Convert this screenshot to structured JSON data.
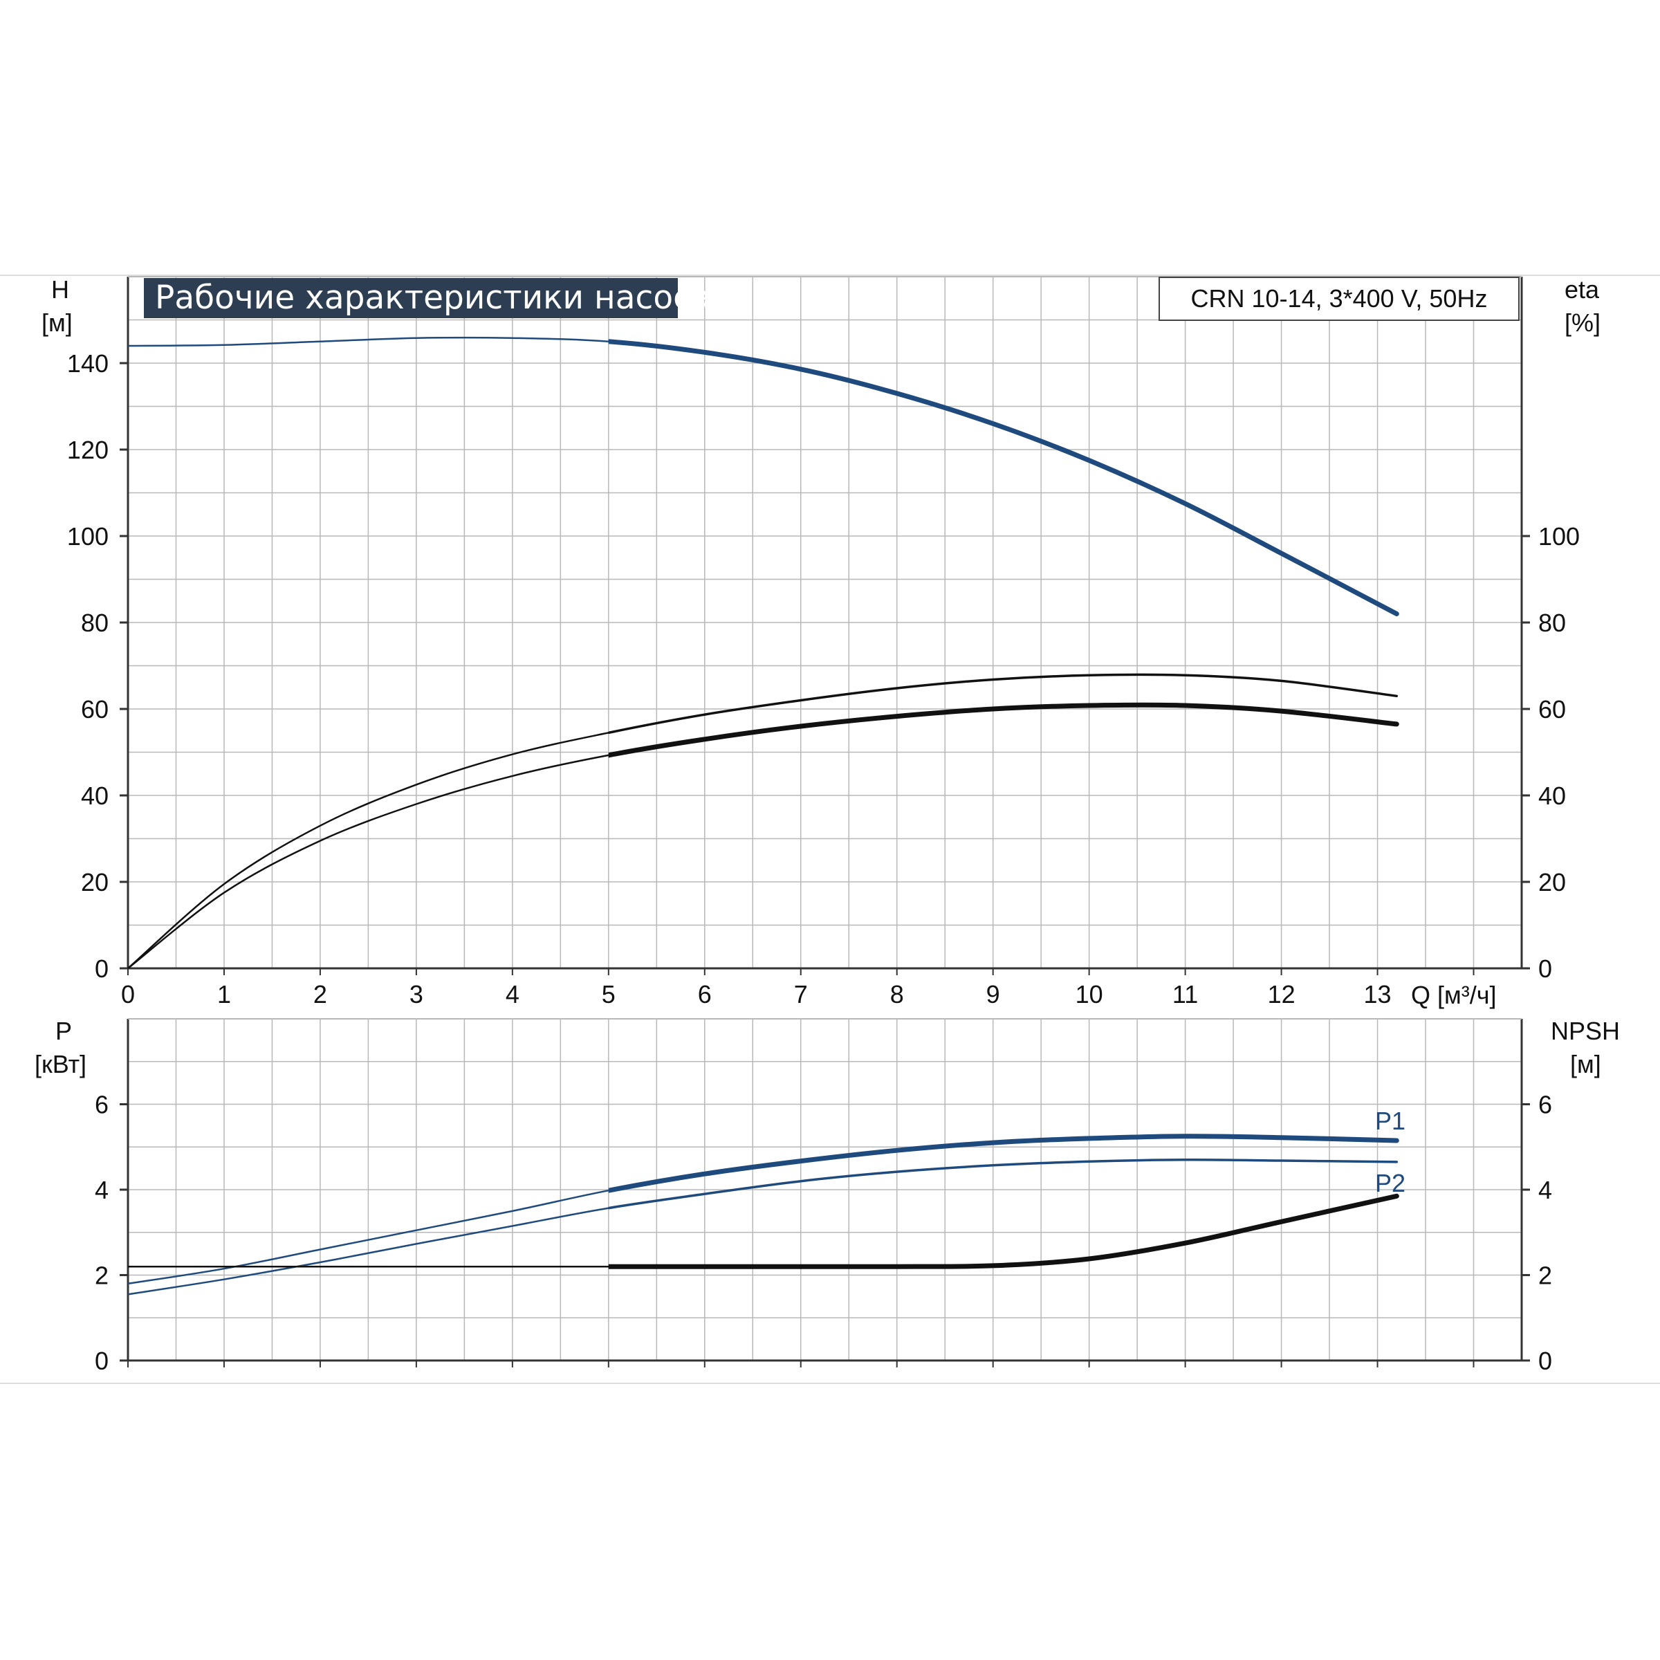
{
  "title": "Рабочие характеристики насоса",
  "model": "CRN 10-14, 3*400 V, 50Hz",
  "colors": {
    "blue": "#1f4a7e",
    "black": "#111111",
    "grid": "#b8b8b8",
    "title_bg": "#2d3e52"
  },
  "chart_data": [
    {
      "type": "line",
      "x_label": "Q [м³/ч]",
      "x_ticks": [
        "0",
        "1",
        "2",
        "3",
        "4",
        "5",
        "6",
        "7",
        "8",
        "9",
        "10",
        "11",
        "12",
        "13"
      ],
      "xlim": [
        0,
        14.5
      ],
      "left_axis": {
        "name": "H",
        "unit": "[м]",
        "ylim": [
          0,
          160
        ],
        "ticks": [
          "0",
          "20",
          "40",
          "60",
          "80",
          "100",
          "120",
          "140"
        ]
      },
      "right_axis": {
        "name": "eta",
        "unit": "[%]",
        "ylim": [
          0,
          160
        ],
        "ticks": [
          "0",
          "20",
          "40",
          "60",
          "80",
          "100"
        ]
      },
      "grid": true,
      "series": [
        {
          "axis": "left",
          "color": "blue",
          "x": [
            0,
            1,
            2,
            3,
            4,
            5,
            6,
            7,
            8,
            9,
            10,
            11,
            12,
            13.2
          ],
          "y": [
            144,
            144.2,
            145,
            145.8,
            145.8,
            145,
            142.5,
            138.6,
            133,
            126,
            117.5,
            107.5,
            96,
            82
          ]
        },
        {
          "axis": "right",
          "color": "black",
          "x": [
            0,
            1,
            2,
            3,
            4,
            5,
            6,
            7,
            8,
            9,
            10,
            11,
            12,
            13.2
          ],
          "y": [
            0,
            19.5,
            33,
            42.5,
            49.5,
            54.5,
            58.7,
            62,
            64.8,
            66.8,
            67.8,
            67.8,
            66.5,
            63
          ]
        },
        {
          "axis": "right",
          "color": "black",
          "x": [
            0,
            1,
            2,
            3,
            4,
            5,
            6,
            7,
            8,
            9,
            10,
            11,
            12,
            13.2
          ],
          "y": [
            0,
            17.5,
            29.5,
            38,
            44.5,
            49.3,
            53,
            56,
            58.3,
            60,
            60.8,
            60.8,
            59.5,
            56.5
          ]
        }
      ]
    },
    {
      "type": "line",
      "left_axis": {
        "name": "P",
        "unit": "[кВт]",
        "ylim": [
          0,
          8
        ],
        "ticks": [
          "0",
          "2",
          "4",
          "6"
        ]
      },
      "right_axis": {
        "name": "NPSH",
        "unit": "[м]",
        "ylim": [
          0,
          8
        ],
        "ticks": [
          "0",
          "2",
          "4",
          "6"
        ]
      },
      "xlim": [
        0,
        14.5
      ],
      "grid": true,
      "series": [
        {
          "name": "P1",
          "axis": "left",
          "color": "blue",
          "x": [
            0,
            1,
            2,
            3,
            4,
            5,
            6,
            7,
            8,
            9,
            10,
            11,
            12,
            13.2
          ],
          "y": [
            1.8,
            2.15,
            2.6,
            3.05,
            3.5,
            3.98,
            4.37,
            4.67,
            4.92,
            5.1,
            5.2,
            5.25,
            5.22,
            5.15
          ]
        },
        {
          "name": "P2",
          "axis": "left",
          "color": "blue",
          "x": [
            0,
            1,
            2,
            3,
            4,
            5,
            6,
            7,
            8,
            9,
            10,
            11,
            12,
            13.2
          ],
          "y": [
            1.55,
            1.9,
            2.3,
            2.73,
            3.15,
            3.57,
            3.9,
            4.2,
            4.42,
            4.57,
            4.66,
            4.7,
            4.68,
            4.65
          ]
        },
        {
          "axis": "right",
          "color": "black",
          "x": [
            0,
            1,
            2,
            3,
            4,
            5,
            6,
            7,
            8,
            9,
            10,
            11,
            12,
            13.2
          ],
          "y": [
            2.2,
            2.2,
            2.2,
            2.2,
            2.2,
            2.2,
            2.2,
            2.2,
            2.2,
            2.22,
            2.38,
            2.75,
            3.25,
            3.85
          ]
        }
      ]
    }
  ]
}
